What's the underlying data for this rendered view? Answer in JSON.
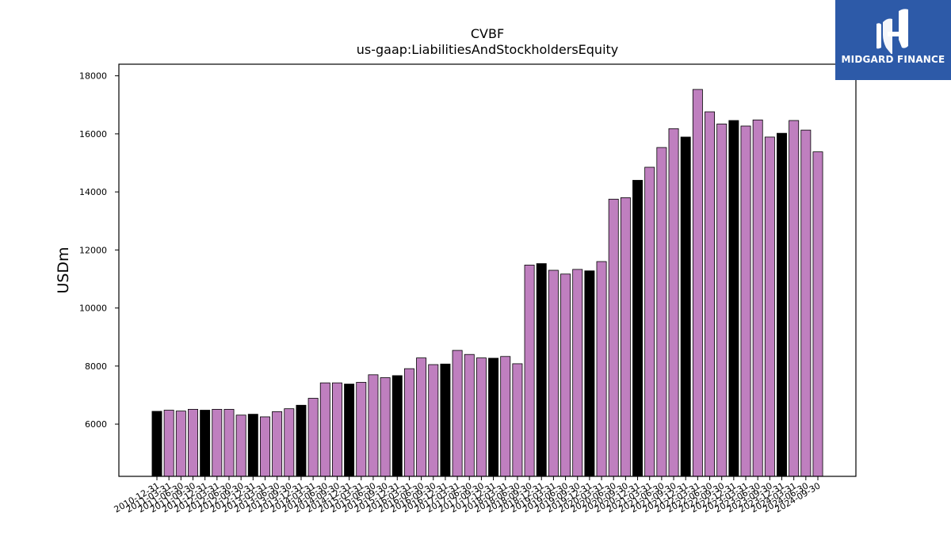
{
  "logo": {
    "text": "MIDGARD FINANCE",
    "background": "#2d5aa8"
  },
  "chart_data": {
    "type": "bar",
    "title": "CVBF",
    "subtitle": "us-gaap:LiabilitiesAndStockholdersEquity",
    "ylabel": "USDm",
    "xlabel": "",
    "ylim": [
      4200,
      18400
    ],
    "yticks": [
      6000,
      8000,
      10000,
      12000,
      14000,
      16000,
      18000
    ],
    "grid": false,
    "colors": {
      "annual": "#000000",
      "quarterly": "#bf7fbf",
      "edge": "#000000"
    },
    "categories": [
      "2010-12-31",
      "2011-03-31",
      "2011-06-30",
      "2011-09-30",
      "2011-12-31",
      "2012-03-31",
      "2012-06-30",
      "2012-09-30",
      "2012-12-31",
      "2013-03-31",
      "2013-06-30",
      "2013-09-30",
      "2013-12-31",
      "2014-03-31",
      "2014-06-30",
      "2014-09-30",
      "2014-12-31",
      "2015-03-31",
      "2015-06-30",
      "2015-09-30",
      "2015-12-31",
      "2016-03-31",
      "2016-06-30",
      "2016-09-30",
      "2016-12-31",
      "2017-03-31",
      "2017-06-30",
      "2017-09-30",
      "2017-12-31",
      "2018-03-31",
      "2018-06-30",
      "2018-09-30",
      "2018-12-31",
      "2019-03-31",
      "2019-06-30",
      "2019-09-30",
      "2019-12-31",
      "2020-03-31",
      "2020-06-30",
      "2020-09-30",
      "2020-12-31",
      "2021-03-31",
      "2021-06-30",
      "2021-09-30",
      "2021-12-31",
      "2022-03-31",
      "2022-06-30",
      "2022-09-30",
      "2022-12-31",
      "2023-03-31",
      "2023-06-30",
      "2023-09-30",
      "2023-12-31",
      "2024-03-31",
      "2024-06-30",
      "2024-09-30"
    ],
    "values": [
      6440,
      6480,
      6450,
      6510,
      6480,
      6510,
      6510,
      6310,
      6340,
      6250,
      6430,
      6530,
      6650,
      6890,
      7420,
      7420,
      7380,
      7440,
      7700,
      7600,
      7670,
      7910,
      8280,
      8050,
      8070,
      8540,
      8400,
      8280,
      8270,
      8330,
      8080,
      11480,
      11530,
      11300,
      11170,
      11330,
      11280,
      11600,
      13750,
      13800,
      14400,
      14850,
      15530,
      16180,
      15890,
      17530,
      16760,
      16340,
      16460,
      16270,
      16480,
      15890,
      16020,
      16460,
      16130,
      15380
    ],
    "annual": [
      true,
      false,
      false,
      false,
      true,
      false,
      false,
      false,
      true,
      false,
      false,
      false,
      true,
      false,
      false,
      false,
      true,
      false,
      false,
      false,
      true,
      false,
      false,
      false,
      true,
      false,
      false,
      false,
      true,
      false,
      false,
      false,
      true,
      false,
      false,
      false,
      true,
      false,
      false,
      false,
      true,
      false,
      false,
      false,
      true,
      false,
      false,
      false,
      true,
      false,
      false,
      false,
      true,
      false,
      false,
      false
    ]
  }
}
